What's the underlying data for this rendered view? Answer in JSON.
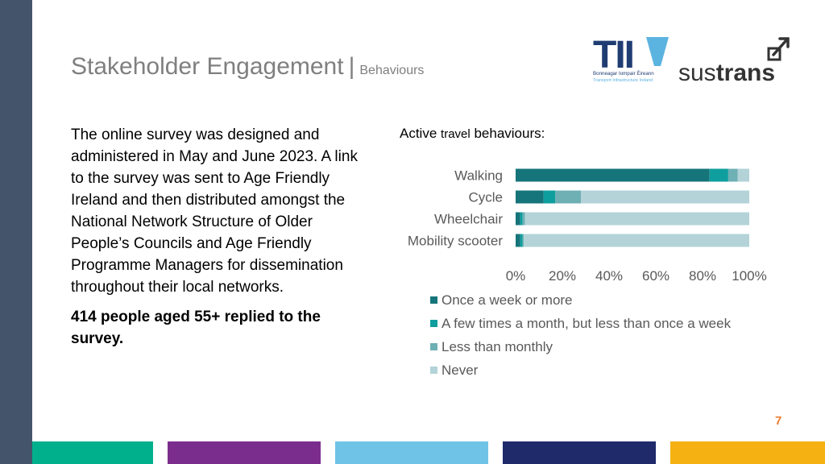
{
  "header": {
    "title": "Stakeholder Engagement",
    "separator": "|",
    "subtitle": "Behaviours"
  },
  "logos": {
    "tii": {
      "wordmark": "TII",
      "line1": "Bonneagar Iompair Éireann",
      "line2": "Transport Infrastructure Ireland"
    },
    "sustrans": {
      "wordmark_light": "sus",
      "wordmark_bold": "trans"
    }
  },
  "body": {
    "paragraph": "The online survey was designed and administered in May and June 2023. A link to the survey was sent to Age Friendly Ireland and then distributed amongst the National Network Structure of Older People’s Councils and Age Friendly Programme Managers for dissemination throughout their local networks.",
    "highlight": "414 people aged 55+ replied to the survey."
  },
  "chart_title": {
    "part1": "Active",
    "part2": "travel",
    "part3": "behaviours:"
  },
  "chart_data": {
    "type": "bar",
    "orientation": "horizontal",
    "stacked": true,
    "categories": [
      "Walking",
      "Cycle",
      "Wheelchair",
      "Mobility scooter"
    ],
    "series": [
      {
        "name": "Once a week or more",
        "values": [
          83,
          12,
          2,
          2
        ],
        "color": "#15757A"
      },
      {
        "name": "A few times a month, but less than once a week",
        "values": [
          8,
          5,
          1,
          1
        ],
        "color": "#0F9E9E"
      },
      {
        "name": "Less than monthly",
        "values": [
          4,
          11,
          1,
          0.5
        ],
        "color": "#6FB0B5"
      },
      {
        "name": "Never",
        "values": [
          5,
          72,
          96,
          96.5
        ],
        "color": "#B3D3D8"
      }
    ],
    "x_ticks": [
      "0%",
      "20%",
      "40%",
      "60%",
      "80%",
      "100%"
    ],
    "xlim": [
      0,
      100
    ],
    "legend_position": "bottom",
    "grid": false
  },
  "page_number": "7",
  "footer_colors": [
    "#00B08C",
    "#7B2D8E",
    "#6FC3E6",
    "#1F2A6B",
    "#F5B112"
  ],
  "colors": {
    "side_bar": "#44546A",
    "title": "#7F7F7F",
    "page_number": "#ED7D31"
  }
}
